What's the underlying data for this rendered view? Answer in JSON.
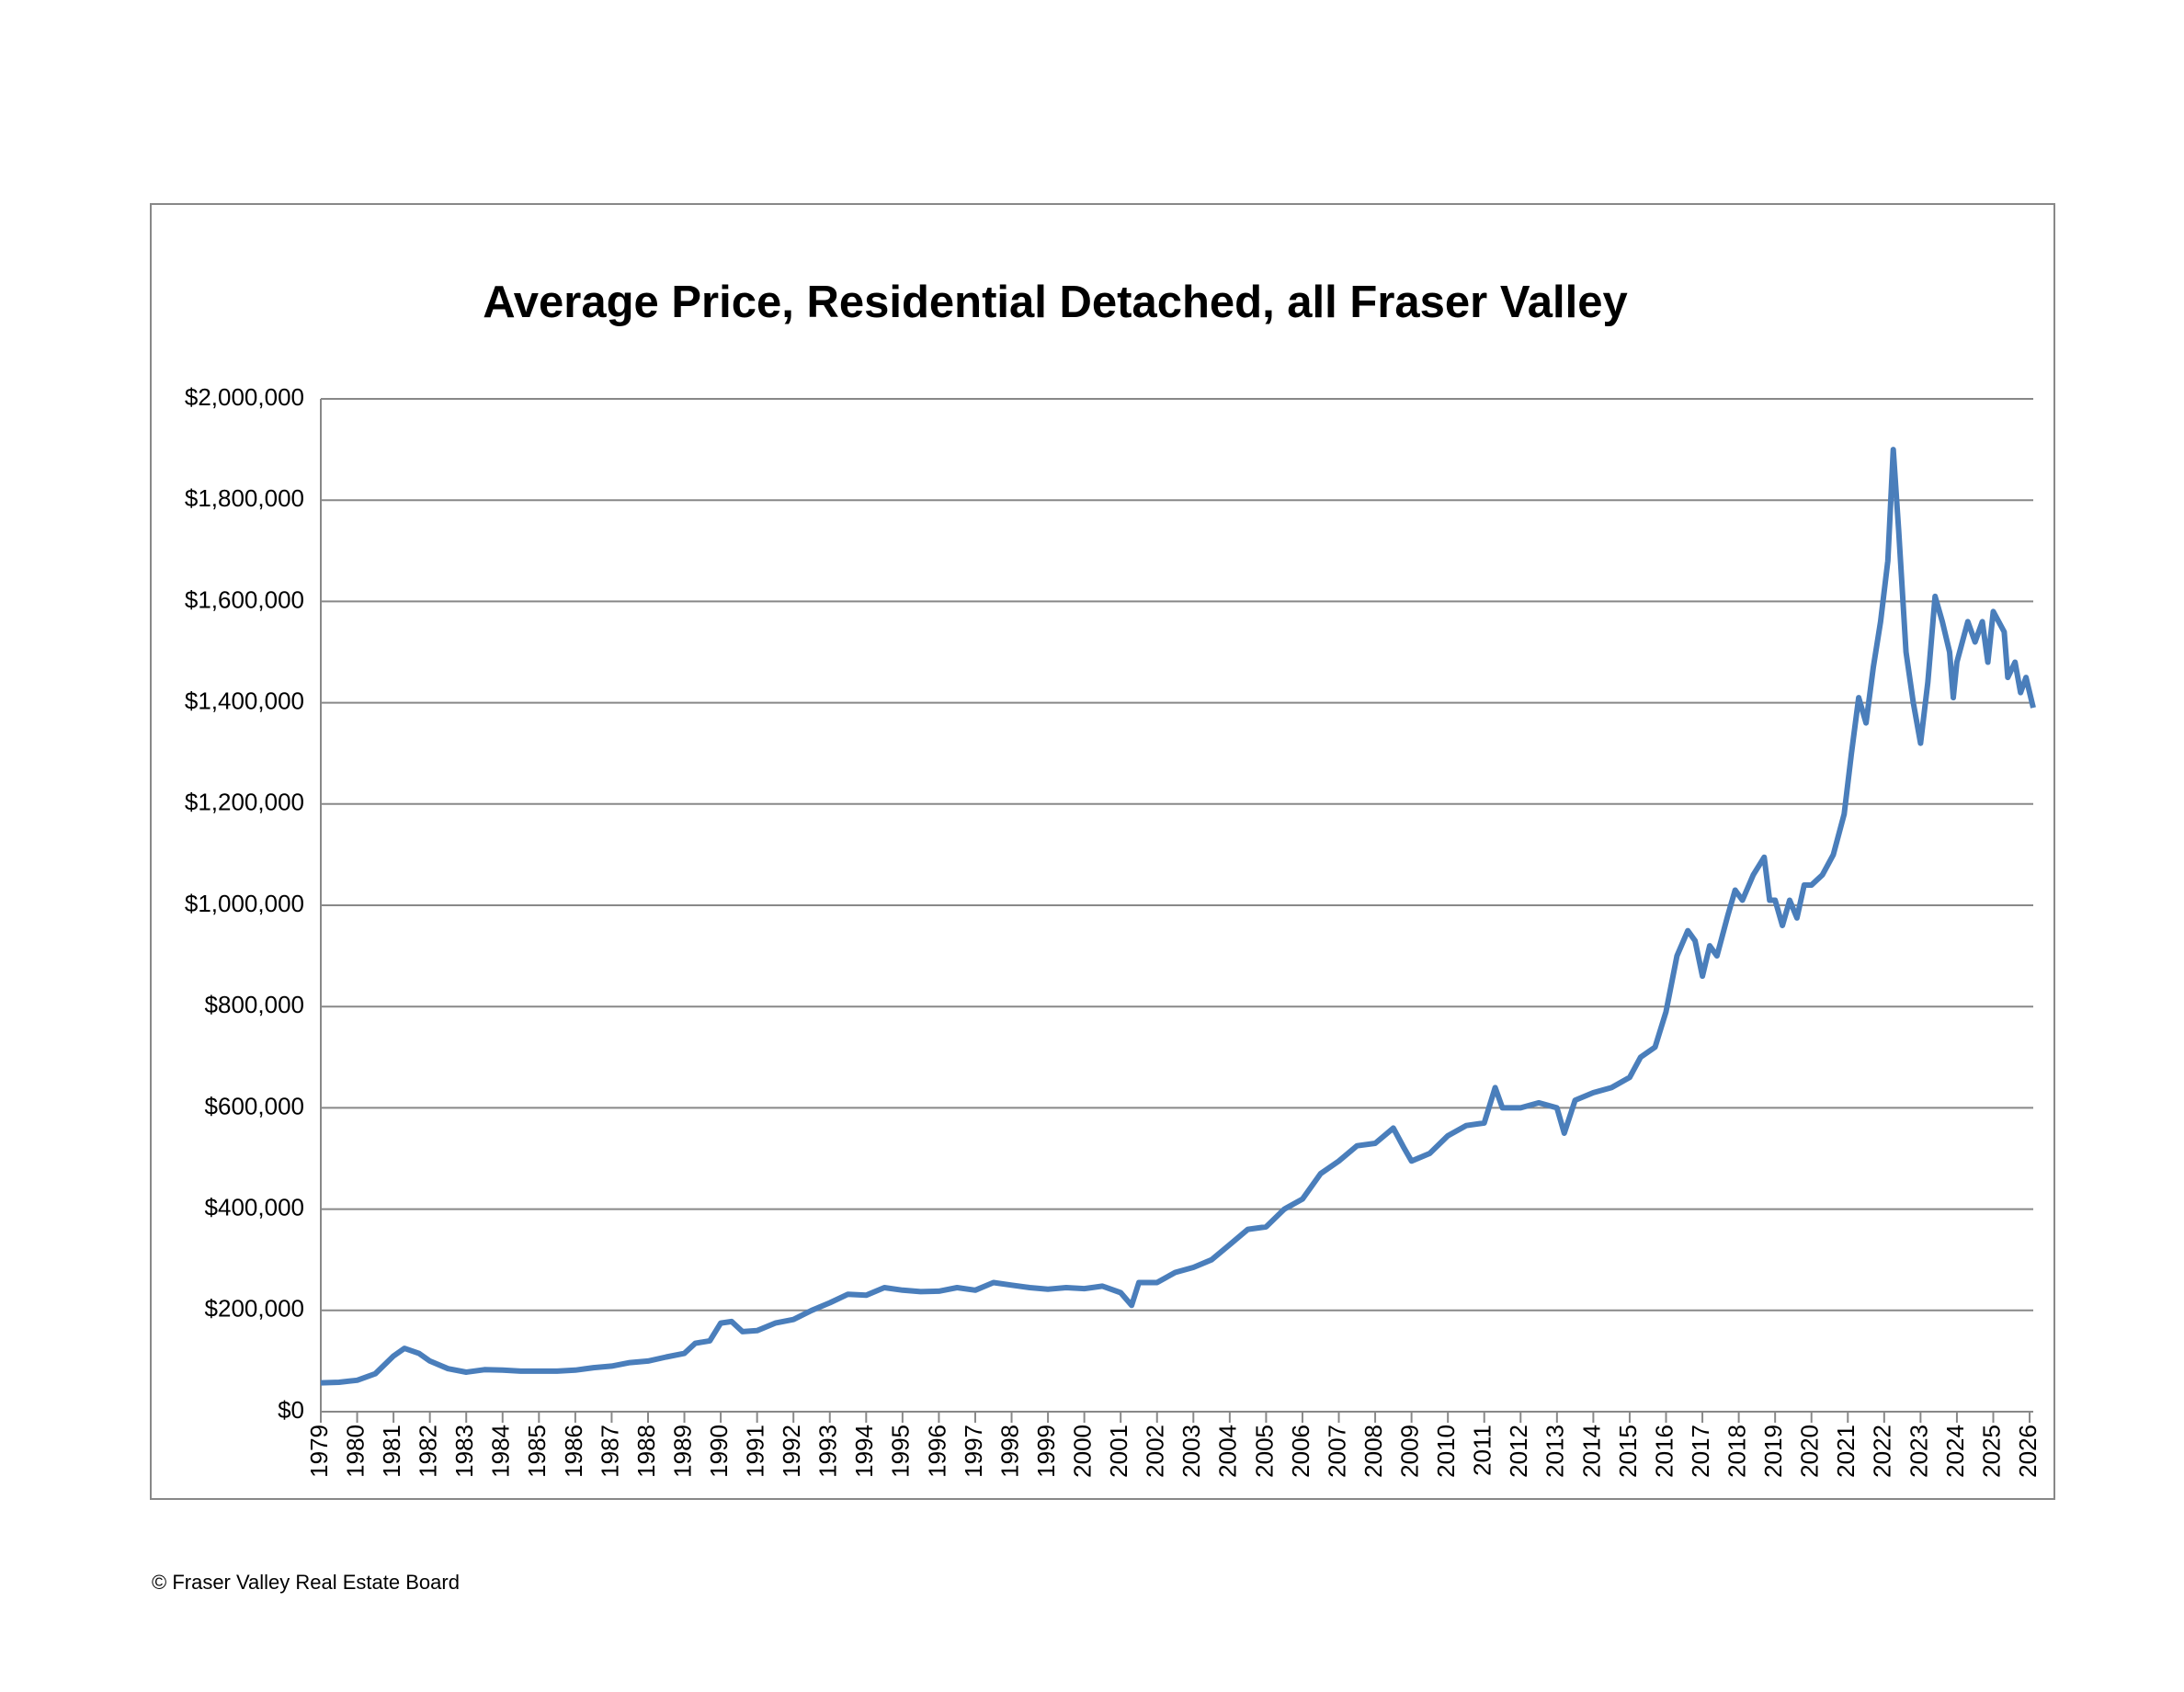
{
  "chart_data": {
    "type": "line",
    "title": "Average Price, Residential Detached, all Fraser Valley",
    "footer": "© Fraser Valley Real Estate Board",
    "x": [
      1979.0,
      1979.5,
      1980.0,
      1980.5,
      1981.0,
      1981.3,
      1981.7,
      1982.0,
      1982.5,
      1983.0,
      1983.5,
      1984.0,
      1984.5,
      1985.0,
      1985.5,
      1986.0,
      1986.5,
      1987.0,
      1987.5,
      1988.0,
      1988.5,
      1989.0,
      1989.3,
      1989.7,
      1990.0,
      1990.3,
      1990.6,
      1991.0,
      1991.5,
      1992.0,
      1992.5,
      1993.0,
      1993.5,
      1994.0,
      1994.5,
      1995.0,
      1995.5,
      1996.0,
      1996.5,
      1997.0,
      1997.5,
      1998.0,
      1998.5,
      1999.0,
      1999.5,
      2000.0,
      2000.5,
      2001.0,
      2001.3,
      2001.5,
      2002.0,
      2002.5,
      2003.0,
      2003.5,
      2004.0,
      2004.5,
      2005.0,
      2005.5,
      2006.0,
      2006.5,
      2007.0,
      2007.5,
      2008.0,
      2008.5,
      2008.8,
      2009.0,
      2009.5,
      2010.0,
      2010.5,
      2011.0,
      2011.3,
      2011.5,
      2012.0,
      2012.5,
      2013.0,
      2013.2,
      2013.5,
      2014.0,
      2014.5,
      2015.0,
      2015.3,
      2015.7,
      2016.0,
      2016.3,
      2016.6,
      2016.8,
      2017.0,
      2017.2,
      2017.4,
      2017.7,
      2017.9,
      2018.1,
      2018.4,
      2018.7,
      2018.85,
      2019.0,
      2019.2,
      2019.4,
      2019.6,
      2019.8,
      2020.0,
      2020.3,
      2020.6,
      2020.9,
      2021.1,
      2021.3,
      2021.5,
      2021.7,
      2021.9,
      2022.1,
      2022.25,
      2022.4,
      2022.6,
      2022.8,
      2023.0,
      2023.2,
      2023.4,
      2023.6,
      2023.8,
      2023.9,
      2024.0,
      2024.3,
      2024.5,
      2024.7,
      2024.85,
      2025.0,
      2025.3,
      2025.4,
      2025.6,
      2025.75,
      2025.9,
      2026.1
    ],
    "series": [
      {
        "name": "Average Price",
        "color": "#4a7ebb",
        "values": [
          57000,
          58000,
          62000,
          75000,
          110000,
          125000,
          115000,
          100000,
          85000,
          78000,
          83000,
          82000,
          80000,
          80000,
          80000,
          82000,
          87000,
          90000,
          97000,
          100000,
          108000,
          115000,
          135000,
          140000,
          175000,
          178000,
          158000,
          160000,
          175000,
          182000,
          200000,
          215000,
          232000,
          230000,
          245000,
          240000,
          237000,
          238000,
          245000,
          240000,
          255000,
          250000,
          245000,
          242000,
          245000,
          243000,
          248000,
          235000,
          210000,
          255000,
          255000,
          275000,
          285000,
          300000,
          330000,
          360000,
          365000,
          400000,
          420000,
          470000,
          495000,
          525000,
          530000,
          560000,
          520000,
          495000,
          510000,
          545000,
          565000,
          570000,
          640000,
          600000,
          600000,
          610000,
          600000,
          550000,
          615000,
          630000,
          640000,
          660000,
          700000,
          720000,
          790000,
          900000,
          950000,
          930000,
          860000,
          920000,
          900000,
          980000,
          1030000,
          1010000,
          1060000,
          1095000,
          1010000,
          1010000,
          960000,
          1010000,
          975000,
          1040000,
          1040000,
          1060000,
          1100000,
          1180000,
          1300000,
          1410000,
          1360000,
          1470000,
          1560000,
          1680000,
          1900000,
          1740000,
          1500000,
          1400000,
          1320000,
          1440000,
          1610000,
          1560000,
          1500000,
          1410000,
          1480000,
          1560000,
          1520000,
          1560000,
          1480000,
          1580000,
          1540000,
          1450000,
          1480000,
          1420000,
          1450000,
          1390000
        ]
      }
    ],
    "xlim": [
      1979,
      2026.1
    ],
    "xticks": [
      1979,
      1980,
      1981,
      1982,
      1983,
      1984,
      1985,
      1986,
      1987,
      1988,
      1989,
      1990,
      1991,
      1992,
      1993,
      1994,
      1995,
      1996,
      1997,
      1998,
      1999,
      2000,
      2001,
      2002,
      2003,
      2004,
      2005,
      2006,
      2007,
      2008,
      2009,
      2010,
      2011,
      2012,
      2013,
      2014,
      2015,
      2016,
      2017,
      2018,
      2019,
      2020,
      2021,
      2022,
      2023,
      2024,
      2025,
      2026
    ],
    "ylim": [
      0,
      2000000
    ],
    "yticks": [
      {
        "value": 0,
        "label": "$0"
      },
      {
        "value": 200000,
        "label": "$200,000"
      },
      {
        "value": 400000,
        "label": "$400,000"
      },
      {
        "value": 600000,
        "label": "$600,000"
      },
      {
        "value": 800000,
        "label": "$800,000"
      },
      {
        "value": 1000000,
        "label": "$1,000,000"
      },
      {
        "value": 1200000,
        "label": "$1,200,000"
      },
      {
        "value": 1400000,
        "label": "$1,400,000"
      },
      {
        "value": 1600000,
        "label": "$1,600,000"
      },
      {
        "value": 1800000,
        "label": "$1,800,000"
      },
      {
        "value": 2000000,
        "label": "$2,000,000"
      }
    ],
    "grid": true
  }
}
